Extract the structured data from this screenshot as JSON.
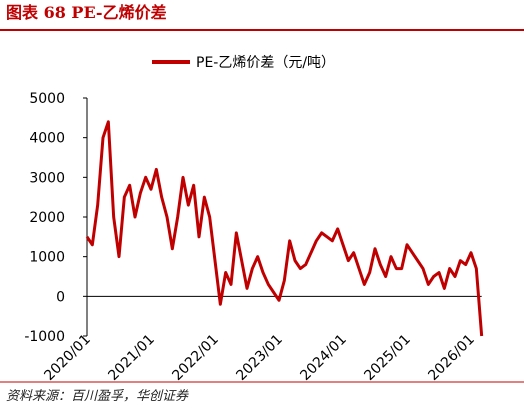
{
  "header": {
    "title": "图表 68 PE-乙烯价差"
  },
  "chart_data": {
    "type": "line",
    "x": [
      "2020/01",
      "2020/02",
      "2020/03",
      "2020/04",
      "2020/05",
      "2020/06",
      "2020/07",
      "2020/08",
      "2020/09",
      "2020/10",
      "2020/11",
      "2020/12",
      "2021/01",
      "2021/02",
      "2021/03",
      "2021/04",
      "2021/05",
      "2021/06",
      "2021/07",
      "2021/08",
      "2021/09",
      "2021/10",
      "2021/11",
      "2021/12",
      "2022/01",
      "2022/02",
      "2022/03",
      "2022/04",
      "2022/05",
      "2022/06",
      "2022/07",
      "2022/08",
      "2022/09",
      "2022/10",
      "2022/11",
      "2022/12",
      "2023/01",
      "2023/02",
      "2023/03",
      "2023/04",
      "2023/05",
      "2023/06",
      "2023/07",
      "2023/08",
      "2023/09",
      "2023/10",
      "2023/11",
      "2023/12",
      "2024/01",
      "2024/02",
      "2024/03",
      "2024/04",
      "2024/05",
      "2024/06",
      "2024/07",
      "2024/08",
      "2024/09",
      "2024/10",
      "2024/11",
      "2024/12",
      "2025/01",
      "2025/02",
      "2025/03",
      "2025/04",
      "2025/05",
      "2025/06",
      "2025/07",
      "2025/08",
      "2025/09",
      "2025/10",
      "2025/11",
      "2025/12",
      "2026/01",
      "2026/02",
      "2026/03"
    ],
    "series": [
      {
        "name": "PE-乙烯价差（元/吨）",
        "color": "#c00000",
        "values": [
          1500,
          1300,
          2300,
          4000,
          4400,
          2000,
          1000,
          2500,
          2800,
          2000,
          2600,
          3000,
          2700,
          3200,
          2500,
          2000,
          1200,
          2000,
          3000,
          2300,
          2800,
          1500,
          2500,
          2000,
          900,
          -200,
          600,
          300,
          1600,
          900,
          200,
          700,
          1000,
          600,
          300,
          100,
          -100,
          400,
          1400,
          900,
          700,
          800,
          1100,
          1400,
          1600,
          1500,
          1400,
          1700,
          1300,
          900,
          1100,
          700,
          300,
          600,
          1200,
          800,
          500,
          1000,
          700,
          700,
          1300,
          1100,
          900,
          700,
          300,
          500,
          600,
          200,
          700,
          500,
          900,
          800,
          1100,
          700,
          -1000
        ]
      }
    ],
    "ylim": [
      -1000,
      5000
    ],
    "yticks": [
      -1000,
      0,
      1000,
      2000,
      3000,
      4000,
      5000
    ],
    "xticks": [
      "2020/01",
      "2021/01",
      "2022/01",
      "2023/01",
      "2024/01",
      "2025/01",
      "2026/01"
    ]
  },
  "footer": {
    "source": "资料来源：百川盈孚，华创证券"
  }
}
